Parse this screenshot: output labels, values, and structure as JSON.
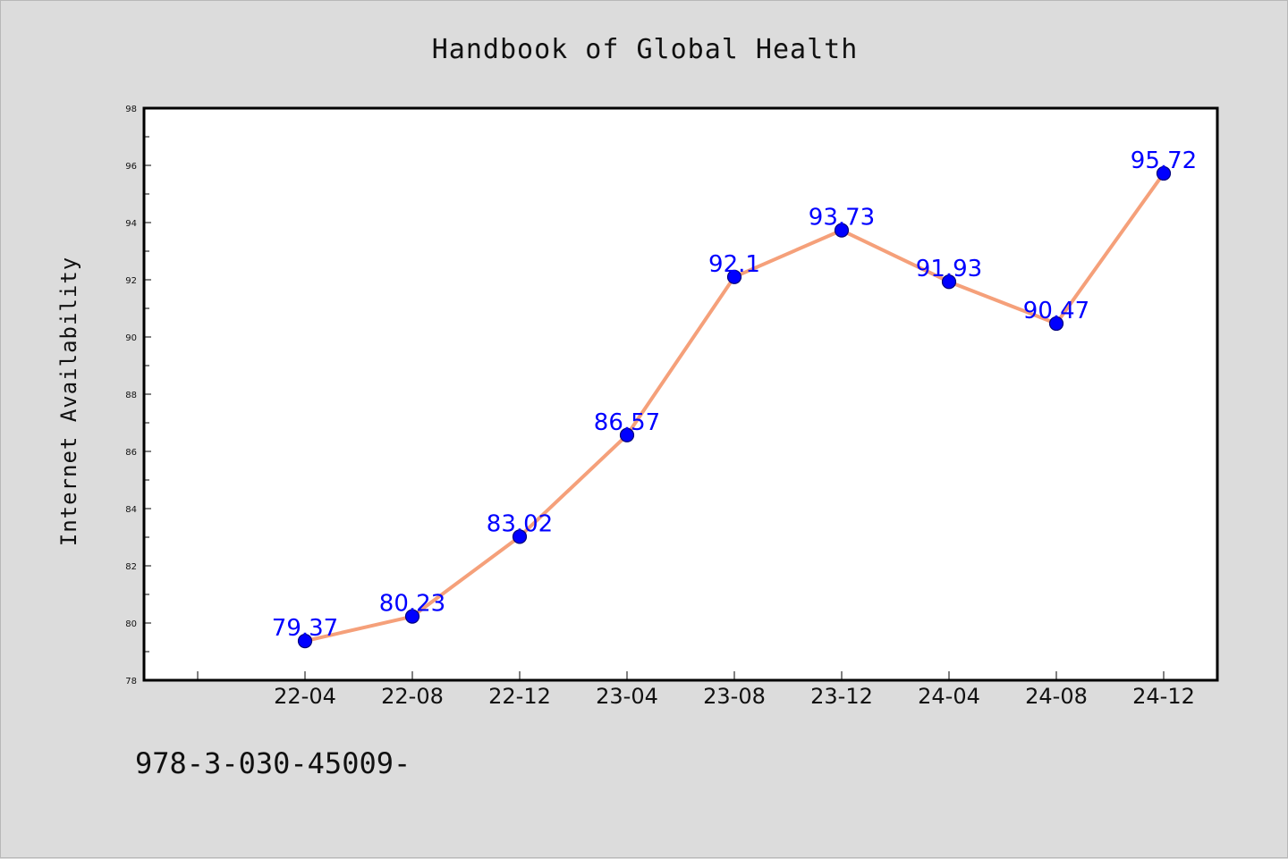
{
  "chart_data": {
    "type": "line",
    "title": "Handbook of Global Health",
    "xlabel": "",
    "ylabel": "Internet Availability",
    "categories": [
      "22-04",
      "22-08",
      "22-12",
      "23-04",
      "23-08",
      "23-12",
      "24-04",
      "24-08",
      "24-12"
    ],
    "series": [
      {
        "values": [
          79.37,
          80.23,
          83.02,
          86.57,
          92.1,
          93.73,
          91.93,
          90.47,
          95.72
        ],
        "data_labels": [
          "79.37",
          "80.23",
          "83.02",
          "86.57",
          "92.1",
          "93.73",
          "91.93",
          "90.47",
          "95.72"
        ]
      }
    ],
    "ylim": [
      78,
      98
    ],
    "yticks": [
      78,
      80,
      82,
      84,
      86,
      88,
      90,
      92,
      94,
      96,
      98
    ],
    "grid": false,
    "legend": "none",
    "colors": {
      "line": "#f5a07a",
      "marker": "#0000ff",
      "marker_edge": "#00007a",
      "data_label": "#0000ff",
      "plot_bg": "#ffffff",
      "page_bg": "#dcdcdc"
    }
  },
  "footer": {
    "text": "978-3-030-45009-"
  }
}
